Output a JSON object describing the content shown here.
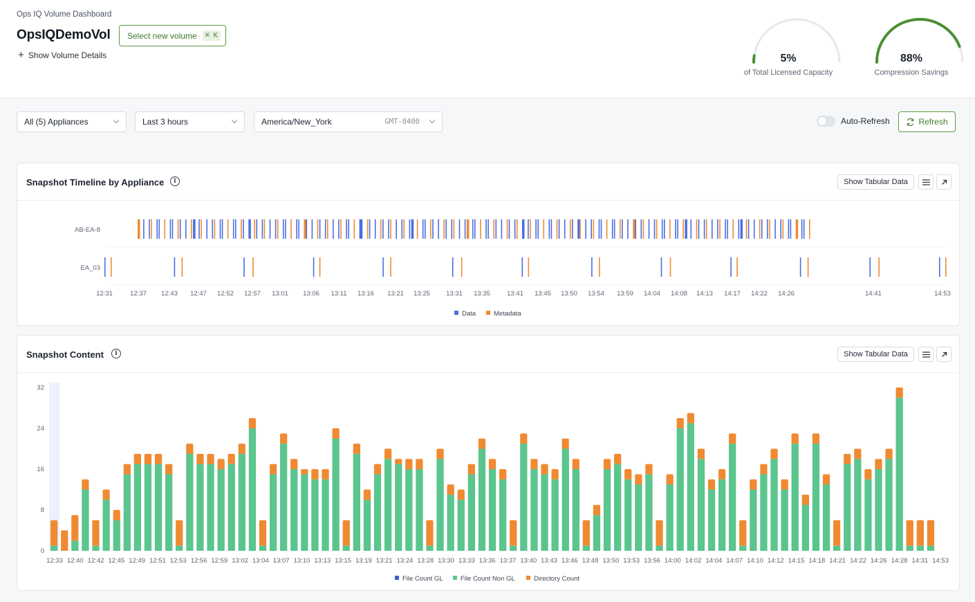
{
  "header": {
    "breadcrumb": "Ops IQ Volume Dashboard",
    "volume_name": "OpsIQDemoVol",
    "select_volume_label": "Select new volume",
    "select_volume_shortcut": "⌘ K",
    "show_details_label": "Show Volume Details",
    "gauges": [
      {
        "value_text": "5%",
        "value": 5,
        "label": "of Total Licensed Capacity"
      },
      {
        "value_text": "88%",
        "value": 88,
        "label": "Compression Savings"
      }
    ]
  },
  "filters": {
    "appliances": "All (5) Appliances",
    "time_range": "Last 3 hours",
    "timezone": "America/New_York",
    "timezone_offset": "GMT-0400",
    "auto_refresh_label": "Auto-Refresh",
    "refresh_label": "Refresh"
  },
  "colors": {
    "accent": "#4a8f35",
    "data": "#4a6ee0",
    "metadata": "#f08a32",
    "file_gl": "#3d5bd9",
    "file_non_gl": "#5bc58e",
    "directory": "#f08a32"
  },
  "timeline_card": {
    "title": "Snapshot Timeline by Appliance",
    "tabular_label": "Show Tabular Data",
    "menu_icon": "menu-icon",
    "expand_icon": "expand-icon"
  },
  "content_card": {
    "title": "Snapshot Content",
    "tabular_label": "Show Tabular Data",
    "menu_icon": "menu-icon",
    "expand_icon": "expand-icon"
  },
  "chart_data": [
    {
      "type": "scatter",
      "title": "Snapshot Timeline by Appliance",
      "rows": [
        "AB-EA-8",
        "EA_03"
      ],
      "x_ticks": [
        "12:31",
        "12:37",
        "12:43",
        "12:47",
        "12:52",
        "12:57",
        "13:01",
        "13:06",
        "13:11",
        "13:16",
        "13:21",
        "13:25",
        "13:31",
        "13:35",
        "13:41",
        "13:45",
        "13:50",
        "13:54",
        "13:59",
        "14:04",
        "14:08",
        "14:13",
        "14:17",
        "14:22",
        "14:26",
        "14:41",
        "14:53"
      ],
      "legend": [
        "Data",
        "Metadata"
      ],
      "series": [
        {
          "name": "AB-EA-8",
          "event_count": 160,
          "start": "12:37",
          "end": "14:28"
        },
        {
          "name": "EA_03",
          "event_pairs": 13,
          "start": "12:31",
          "end": "14:53"
        }
      ]
    },
    {
      "type": "bar",
      "title": "Snapshot Content",
      "stacked": true,
      "ylim": [
        0,
        32
      ],
      "y_ticks": [
        "0",
        "8",
        "16",
        "24",
        "32"
      ],
      "x_ticks": [
        "12:33",
        "12:40",
        "12:42",
        "12:45",
        "12:49",
        "12:51",
        "12:53",
        "12:56",
        "12:59",
        "13:02",
        "13:04",
        "13:07",
        "13:10",
        "13:13",
        "13:15",
        "13:19",
        "13:21",
        "13:24",
        "13:28",
        "13:30",
        "13:33",
        "13:36",
        "13:37",
        "13:40",
        "13:43",
        "13:46",
        "13:48",
        "13:50",
        "13:53",
        "13:56",
        "14:00",
        "14:02",
        "14:04",
        "14:07",
        "14:10",
        "14:12",
        "14:15",
        "14:18",
        "14:21",
        "14:22",
        "14:26",
        "14:28",
        "14:31",
        "14:53"
      ],
      "legend": [
        "File Count GL",
        "File Count Non GL",
        "Directory Count"
      ],
      "series": [
        {
          "name": "File Count GL",
          "values": [
            0,
            0,
            0,
            0,
            0,
            0,
            0,
            0,
            0,
            0,
            0,
            0,
            0,
            0,
            0,
            0,
            0,
            0,
            0,
            0,
            0,
            0,
            0,
            0,
            0,
            0,
            0,
            0,
            0,
            0,
            0,
            0,
            0,
            0,
            0,
            0,
            0,
            0,
            0,
            0,
            0,
            0,
            0,
            0,
            0,
            0,
            0,
            0,
            0,
            0,
            0,
            0,
            0,
            0,
            0,
            0,
            0,
            0,
            0,
            0,
            0,
            0,
            0,
            0,
            0,
            0,
            0,
            0,
            0,
            0,
            0,
            0,
            0,
            0,
            0,
            0,
            0,
            0,
            0,
            0,
            0,
            0,
            0,
            0,
            0,
            0,
            0,
            0,
            0,
            0,
            0,
            0,
            0,
            0,
            0,
            0,
            0,
            0,
            0,
            0
          ]
        },
        {
          "name": "File Count Non GL",
          "values": [
            1,
            0,
            2,
            12,
            1,
            10,
            6,
            15,
            17,
            17,
            17,
            15,
            1,
            19,
            17,
            17,
            16,
            17,
            19,
            24,
            1,
            15,
            21,
            16,
            15,
            14,
            14,
            22,
            1,
            19,
            10,
            15,
            18,
            17,
            16,
            16,
            1,
            18,
            11,
            10,
            15,
            20,
            16,
            14,
            1,
            21,
            16,
            15,
            14,
            20,
            16,
            1,
            7,
            16,
            17,
            14,
            13,
            15,
            1,
            13,
            24,
            25,
            18,
            12,
            14,
            21,
            1,
            12,
            15,
            18,
            12,
            21,
            9,
            21,
            13,
            1,
            17,
            18,
            14,
            16,
            18,
            30,
            1,
            1,
            1,
            0,
            0,
            0,
            0,
            0,
            0,
            0,
            0,
            0,
            0,
            0,
            0,
            0,
            0,
            0
          ]
        },
        {
          "name": "Directory Count",
          "values": [
            5,
            4,
            5,
            2,
            5,
            2,
            2,
            2,
            2,
            2,
            2,
            2,
            5,
            2,
            2,
            2,
            2,
            2,
            2,
            2,
            5,
            2,
            2,
            2,
            1,
            2,
            2,
            2,
            5,
            2,
            2,
            2,
            2,
            1,
            2,
            2,
            5,
            2,
            2,
            2,
            2,
            2,
            2,
            2,
            5,
            2,
            2,
            2,
            2,
            2,
            2,
            5,
            2,
            2,
            2,
            2,
            2,
            2,
            5,
            2,
            2,
            2,
            2,
            2,
            2,
            2,
            5,
            2,
            2,
            2,
            2,
            2,
            2,
            2,
            2,
            5,
            2,
            2,
            2,
            2,
            2,
            2,
            5,
            5,
            5,
            0,
            0,
            0,
            0,
            0,
            0,
            0,
            0,
            0,
            0,
            0,
            0,
            0,
            0,
            0
          ]
        }
      ]
    }
  ]
}
